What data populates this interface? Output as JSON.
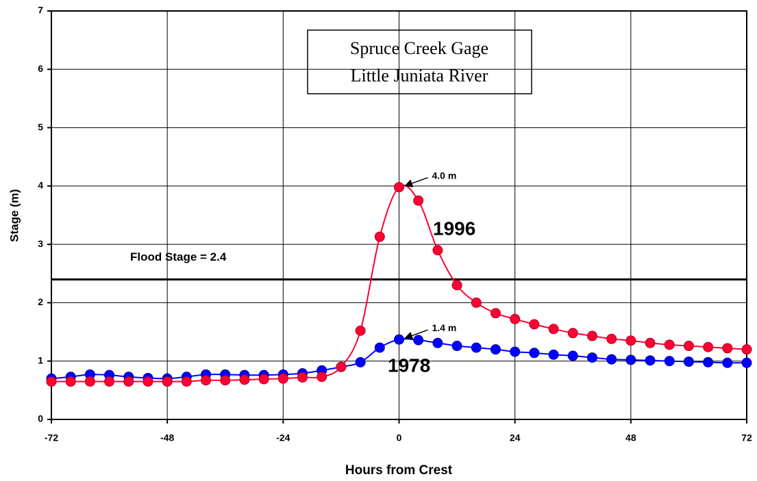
{
  "chart_data": {
    "type": "line",
    "title": "Spruce Creek Gage",
    "subtitle": "Little Juniata River",
    "xlabel": "Hours from Crest",
    "ylabel": "Stage (m)",
    "x": [
      -72,
      -68,
      -64,
      -60,
      -56,
      -52,
      -48,
      -44,
      -40,
      -36,
      -32,
      -28,
      -24,
      -20,
      -16,
      -12,
      -8,
      -4,
      0,
      4,
      8,
      12,
      16,
      20,
      24,
      28,
      32,
      36,
      40,
      44,
      48,
      52,
      56,
      60,
      64,
      68,
      72
    ],
    "series": [
      {
        "name": "1996",
        "color": "#ff0033",
        "values": [
          0.65,
          0.65,
          0.65,
          0.65,
          0.65,
          0.65,
          0.65,
          0.65,
          0.67,
          0.67,
          0.68,
          0.69,
          0.7,
          0.72,
          0.73,
          0.9,
          1.52,
          3.13,
          3.98,
          3.75,
          2.9,
          2.3,
          2.0,
          1.82,
          1.72,
          1.63,
          1.55,
          1.48,
          1.43,
          1.38,
          1.35,
          1.31,
          1.28,
          1.26,
          1.24,
          1.22,
          1.2
        ]
      },
      {
        "name": "1978",
        "color": "#0000ff",
        "values": [
          0.7,
          0.73,
          0.77,
          0.76,
          0.73,
          0.71,
          0.7,
          0.73,
          0.77,
          0.77,
          0.76,
          0.76,
          0.77,
          0.79,
          0.84,
          0.9,
          0.98,
          1.23,
          1.37,
          1.36,
          1.31,
          1.26,
          1.23,
          1.2,
          1.16,
          1.14,
          1.11,
          1.09,
          1.06,
          1.03,
          1.02,
          1.01,
          1.0,
          0.99,
          0.98,
          0.97,
          0.97
        ]
      }
    ],
    "annotations": [
      "4.0 m",
      "1.4 m"
    ],
    "flood_stage": {
      "value": 2.4,
      "label": "Flood Stage = 2.4"
    },
    "xlim": [
      -72,
      72
    ],
    "xticks": [
      -72,
      -48,
      -24,
      0,
      24,
      48,
      72
    ],
    "ylim": [
      0,
      7
    ],
    "yticks": [
      0,
      1,
      2,
      3,
      4,
      5,
      6,
      7
    ],
    "grid": true
  }
}
